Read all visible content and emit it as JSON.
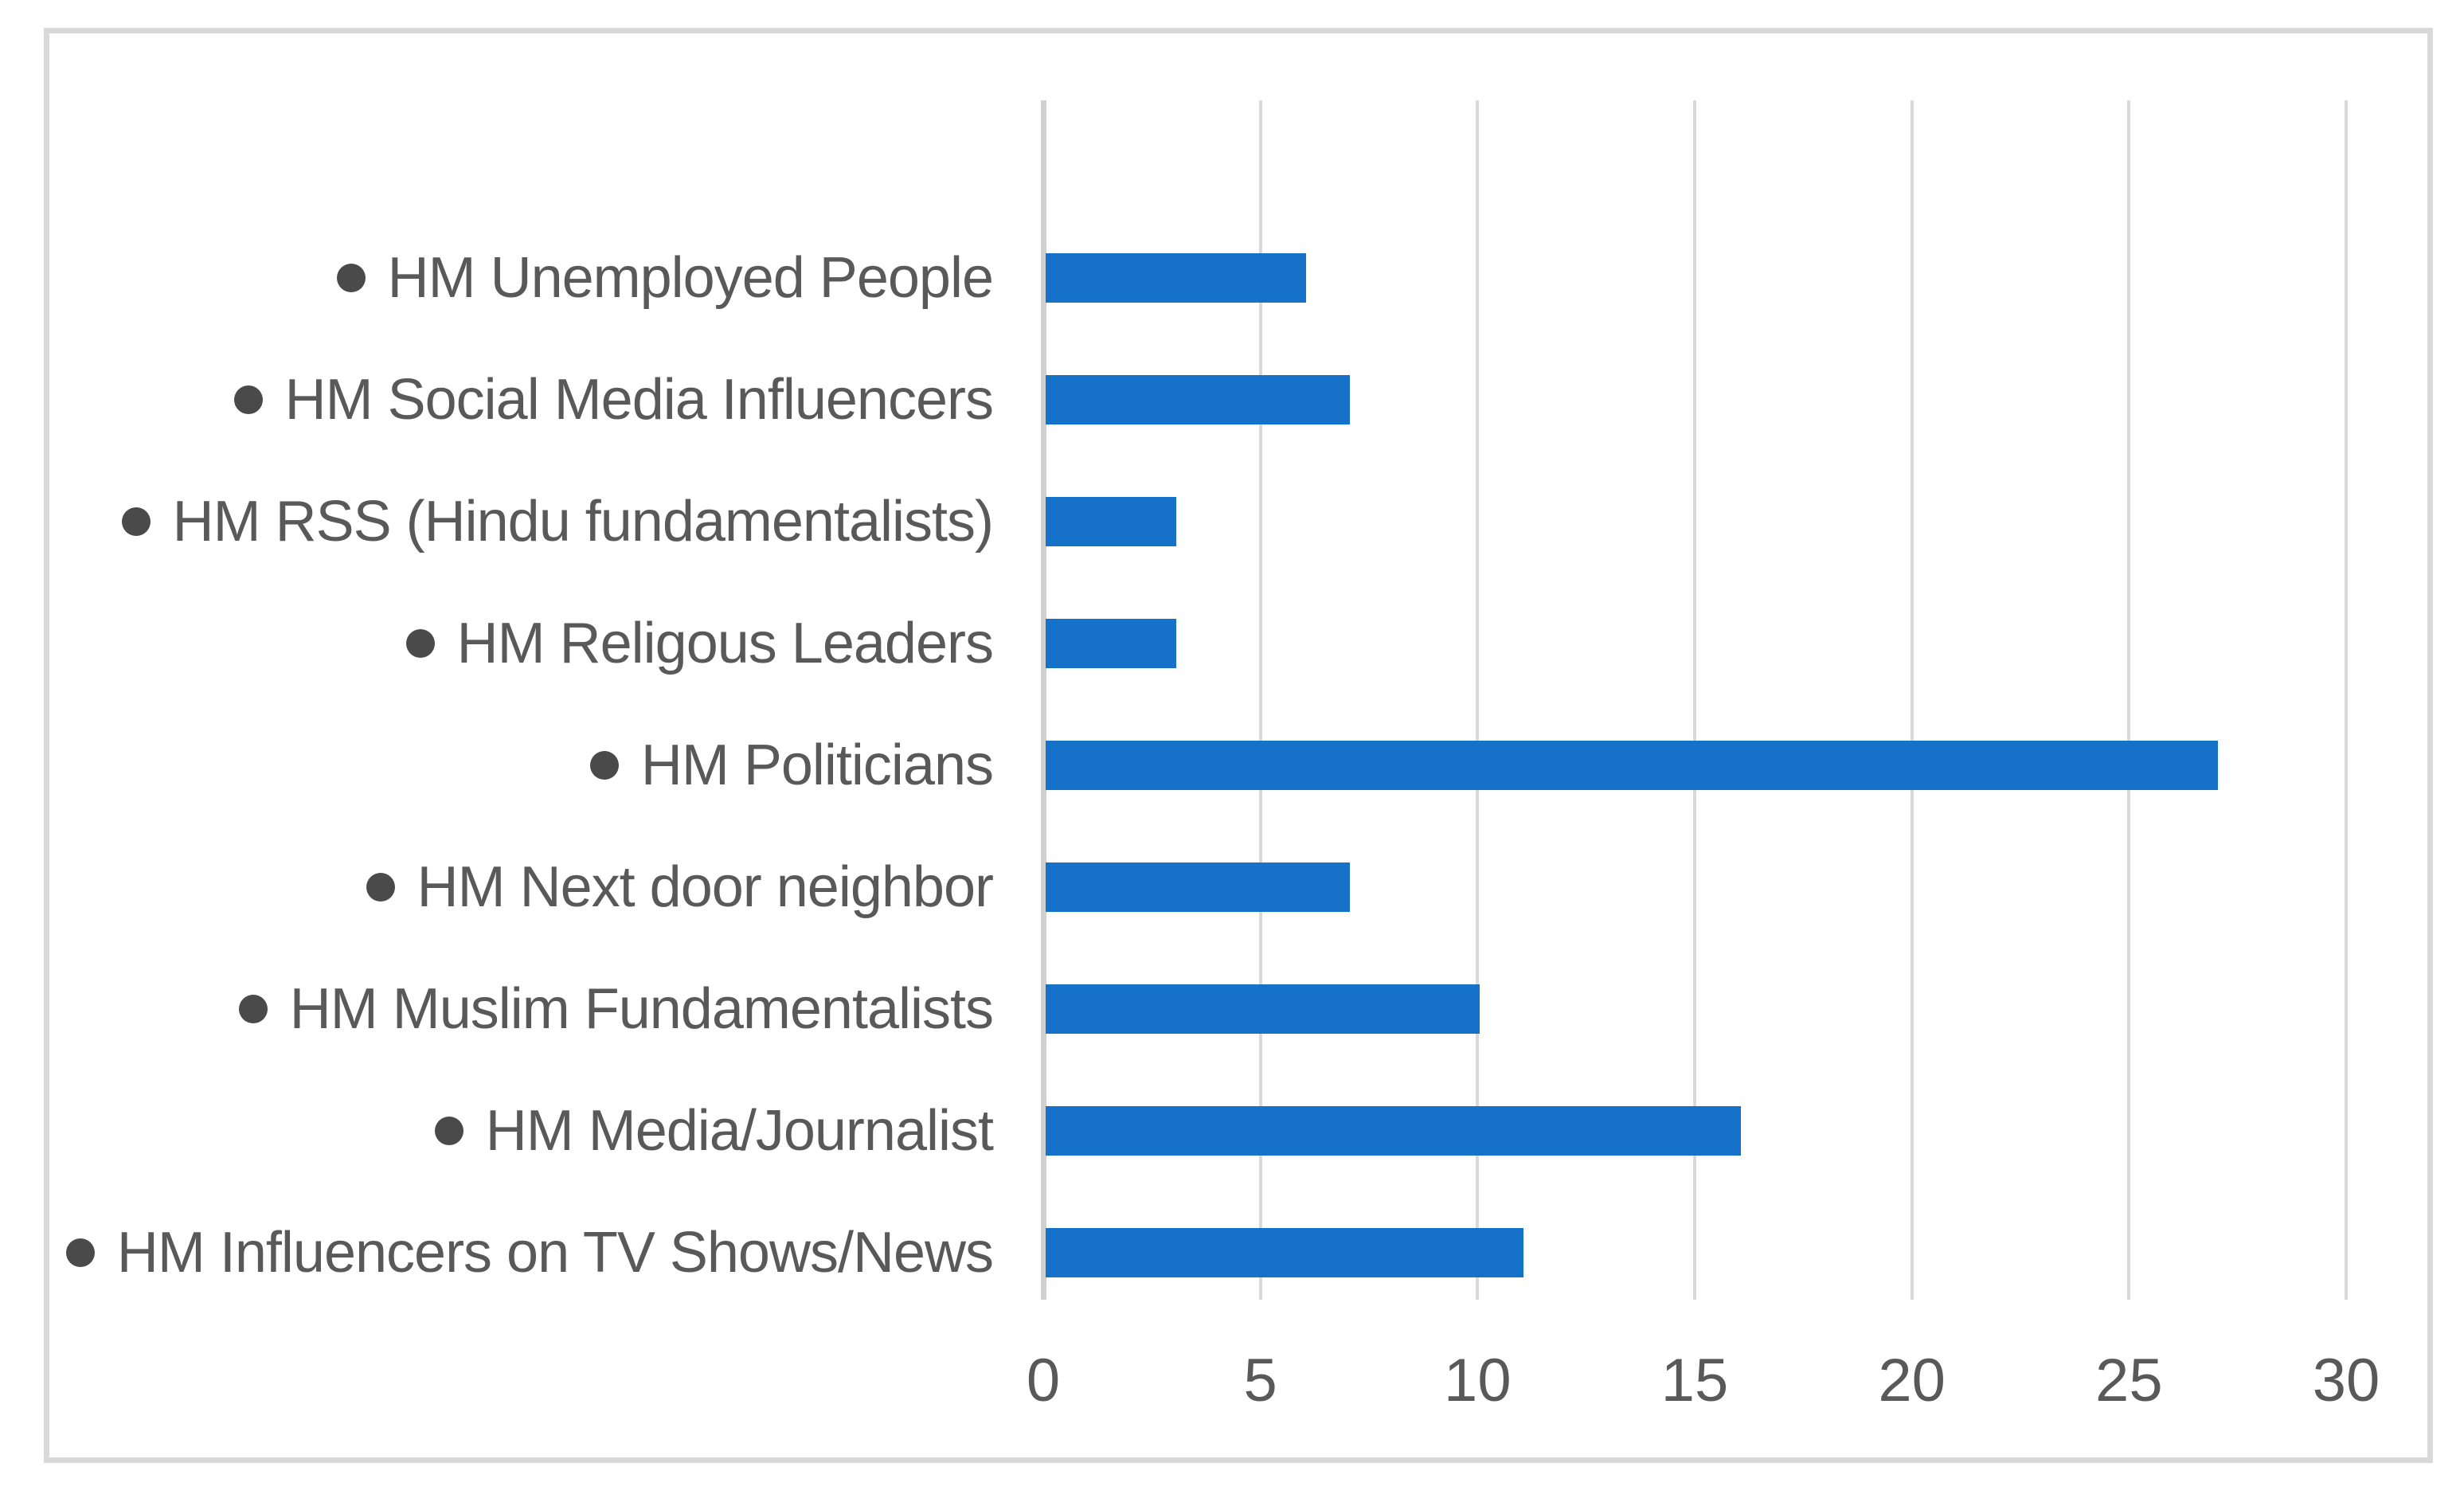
{
  "chart_data": {
    "type": "bar",
    "orientation": "horizontal",
    "title": "",
    "xlabel": "",
    "ylabel": "",
    "grid": true,
    "legend": false,
    "xlim": [
      0,
      30
    ],
    "x_ticks": [
      0,
      5,
      10,
      15,
      20,
      25,
      30
    ],
    "categories": [
      "HM Unemployed People",
      "HM Social Media Influencers",
      "HM RSS (Hindu fundamentalists)",
      "HM Religous Leaders",
      "HM Politicians",
      "HM Next door neighbor",
      "HM Muslim Fundamentalists",
      "HM Media/Journalist",
      "HM Influencers on TV Shows/News"
    ],
    "values": [
      6,
      7,
      3,
      3,
      27,
      7,
      10,
      16,
      11
    ]
  },
  "colors": {
    "bar": "#1672c8",
    "label_text": "#595959",
    "tick_text": "#595959",
    "bullet": "#4a4a4a",
    "gridline": "#d9d9d9",
    "axis_line": "#d0d0d0",
    "frame_border": "#d9d9d9",
    "background": "#ffffff"
  },
  "marker": {
    "bullet_glyph": "●"
  }
}
